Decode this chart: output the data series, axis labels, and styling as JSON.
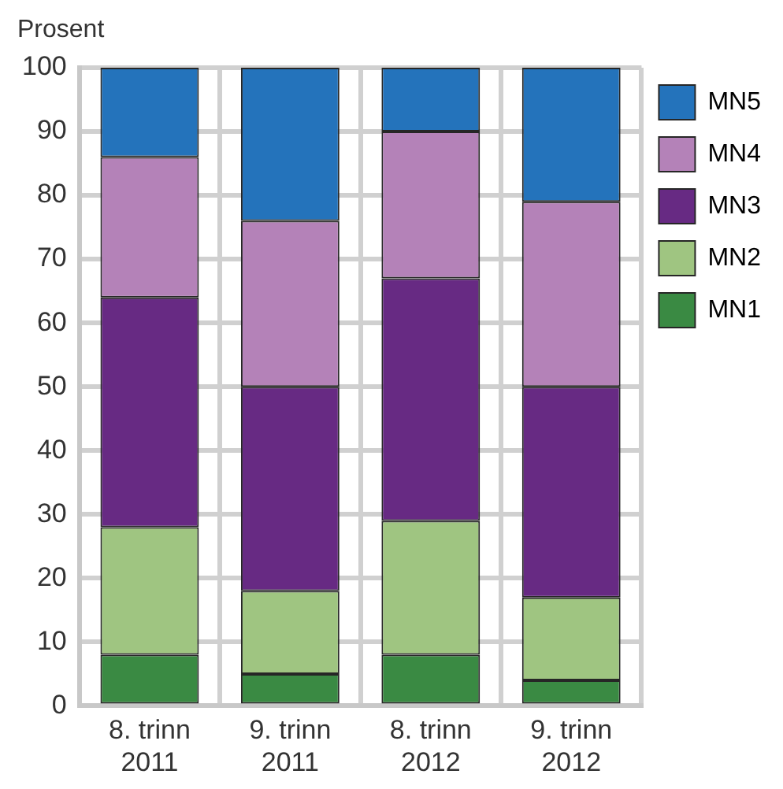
{
  "chart_data": {
    "type": "bar",
    "stacked": true,
    "ylabel": "Prosent",
    "categories": [
      "8. trinn 2011",
      "9. trinn 2011",
      "8. trinn 2012",
      "9. trinn 2012"
    ],
    "series": [
      {
        "name": "MN1",
        "color": "#3a8a43",
        "values": [
          8,
          5,
          8,
          4
        ]
      },
      {
        "name": "MN2",
        "color": "#9fc581",
        "values": [
          20,
          13,
          21,
          13
        ]
      },
      {
        "name": "MN3",
        "color": "#672a83",
        "values": [
          36,
          32,
          38,
          33
        ]
      },
      {
        "name": "MN4",
        "color": "#b482b8",
        "values": [
          22,
          26,
          23,
          29
        ]
      },
      {
        "name": "MN5",
        "color": "#2473bb",
        "values": [
          14,
          24,
          10,
          21
        ]
      }
    ],
    "ylim": [
      0,
      100
    ],
    "yticks": [
      0,
      10,
      20,
      30,
      40,
      50,
      60,
      70,
      80,
      90,
      100
    ],
    "grid": true,
    "legend": "top right"
  }
}
